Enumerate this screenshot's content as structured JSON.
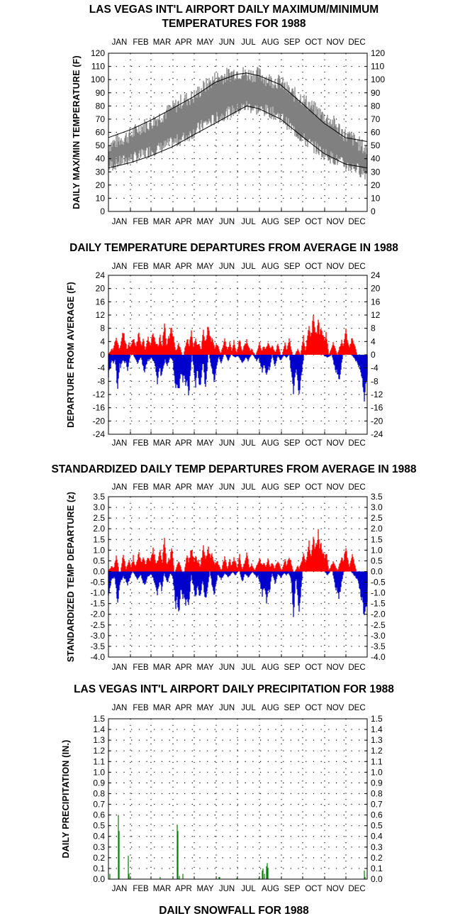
{
  "months": [
    "JAN",
    "FEB",
    "MAR",
    "APR",
    "MAY",
    "JUN",
    "JUL",
    "AUG",
    "SEP",
    "OCT",
    "NOV",
    "DEC"
  ],
  "colors": {
    "warm": "#ff0000",
    "cool": "#0000cc",
    "range": "#808080",
    "precip": "#008000",
    "grid": "#000000"
  },
  "footer_title": "DAILY SNOWFALL FOR 1988",
  "chart_data": [
    {
      "id": "temp",
      "type": "area",
      "title_lines": [
        "LAS VEGAS INT'L AIRPORT DAILY MAXIMUM/MINIMUM",
        "TEMPERATURES FOR 1988"
      ],
      "ylabel": "DAILY MAX/MIN TEMPERATURE (F)",
      "xlabel": "",
      "ylim": [
        0,
        120
      ],
      "yticks": [
        0,
        10,
        20,
        30,
        40,
        50,
        60,
        70,
        80,
        90,
        100,
        110,
        120
      ],
      "grid": true,
      "x_unit": "day of year 1988",
      "series": [
        {
          "kind": "band",
          "name": "",
          "color": "#808080",
          "x": [
            1,
            15,
            32,
            46,
            60,
            74,
            91,
            105,
            121,
            135,
            152,
            166,
            182,
            196,
            213,
            227,
            244,
            258,
            274,
            288,
            305,
            319,
            335,
            349,
            366
          ],
          "high": [
            50,
            54,
            58,
            64,
            67,
            72,
            78,
            84,
            87,
            94,
            101,
            103,
            106,
            104,
            104,
            100,
            98,
            90,
            86,
            79,
            72,
            67,
            58,
            54,
            46
          ],
          "low": [
            34,
            37,
            40,
            42,
            46,
            48,
            52,
            55,
            60,
            66,
            70,
            74,
            77,
            80,
            77,
            76,
            72,
            64,
            56,
            50,
            44,
            40,
            35,
            33,
            28
          ]
        },
        {
          "kind": "line",
          "name": "",
          "color": "#000000",
          "x": [
            1,
            32,
            60,
            91,
            121,
            152,
            182,
            196,
            213,
            244,
            274,
            305,
            335,
            366
          ],
          "y": [
            56,
            62,
            69,
            78,
            87,
            98,
            104,
            105,
            103,
            96,
            82,
            67,
            56,
            53
          ]
        },
        {
          "kind": "line",
          "name": "",
          "color": "#000000",
          "x": [
            1,
            32,
            60,
            91,
            121,
            152,
            182,
            196,
            213,
            244,
            274,
            305,
            335,
            366
          ],
          "y": [
            33,
            37,
            42,
            49,
            58,
            67,
            76,
            80,
            78,
            70,
            57,
            44,
            36,
            33
          ]
        }
      ]
    },
    {
      "id": "dep",
      "type": "bar",
      "title_lines": [
        "DAILY TEMPERATURE DEPARTURES FROM AVERAGE IN 1988"
      ],
      "ylabel": "DEPARTURE FROM AVERAGE (F)",
      "xlabel": "",
      "ylim": [
        -24,
        24
      ],
      "yticks": [
        -24,
        -20,
        -16,
        -12,
        -8,
        -4,
        0,
        4,
        8,
        12,
        16,
        20,
        24
      ],
      "grid": true,
      "x_unit": "day of year 1988",
      "series": [
        {
          "name": "",
          "color": "#ff0000",
          "x": [
            6,
            12,
            22,
            30,
            36,
            44,
            50,
            57,
            64,
            70,
            74,
            80,
            86,
            90,
            100,
            112,
            118,
            124,
            128,
            135,
            142,
            147,
            154,
            165,
            172,
            178,
            186,
            194,
            196,
            203,
            214,
            220,
            226,
            232,
            240,
            250,
            256,
            268,
            276,
            284,
            290,
            294,
            297,
            301,
            304,
            308,
            318,
            330,
            336,
            345
          ],
          "y": [
            2,
            6,
            8,
            4,
            6,
            8,
            6,
            6,
            8,
            4,
            7,
            12,
            6,
            10,
            4,
            6,
            8,
            6,
            4,
            9,
            10,
            6,
            4,
            5,
            4,
            5,
            5,
            4,
            5,
            2,
            4,
            3,
            4,
            3,
            4,
            4,
            5,
            2,
            6,
            10,
            12,
            9,
            13,
            10,
            7,
            7,
            4,
            5,
            8,
            6
          ]
        },
        {
          "name": "",
          "color": "#0000cc",
          "x": [
            1,
            8,
            14,
            18,
            24,
            28,
            42,
            52,
            58,
            66,
            70,
            76,
            84,
            92,
            96,
            100,
            106,
            110,
            114,
            124,
            130,
            138,
            150,
            160,
            170,
            180,
            190,
            198,
            210,
            218,
            224,
            228,
            236,
            244,
            252,
            260,
            262,
            270,
            310,
            322,
            326,
            350,
            354,
            358,
            362,
            365
          ],
          "y": [
            -7,
            -3,
            -12,
            -4,
            -3,
            -5,
            -3,
            -6,
            -2,
            -3,
            -9,
            -8,
            -4,
            -2,
            -12,
            -13,
            -9,
            -12,
            -14,
            -10,
            -11,
            -12,
            -9,
            -3,
            -2,
            -1,
            -3,
            -2,
            -2,
            -6,
            -8,
            -6,
            -4,
            -2,
            -1,
            -3,
            -12,
            -13,
            -1,
            -6,
            -9,
            -2,
            -4,
            -8,
            -15,
            -9
          ]
        }
      ]
    },
    {
      "id": "std",
      "type": "bar",
      "title_lines": [
        "STANDARDIZED DAILY TEMP DEPARTURES FROM AVERAGE IN 1988"
      ],
      "ylabel": "STANDARDIZED TEMP DEPARTURE (z)",
      "xlabel": "",
      "ylim": [
        -4.0,
        3.5
      ],
      "yticks": [
        -4.0,
        -3.5,
        -3.0,
        -2.5,
        -2.0,
        -1.5,
        -1.0,
        -0.5,
        0.0,
        0.5,
        1.0,
        1.5,
        2.0,
        2.5,
        3.0,
        3.5
      ],
      "grid": true,
      "x_unit": "day of year 1988",
      "series": [
        {
          "name": "",
          "color": "#ff0000",
          "x": [
            6,
            12,
            22,
            30,
            36,
            44,
            50,
            57,
            64,
            70,
            74,
            80,
            86,
            90,
            100,
            112,
            118,
            124,
            128,
            135,
            142,
            147,
            154,
            165,
            172,
            178,
            186,
            194,
            196,
            203,
            214,
            220,
            226,
            232,
            240,
            250,
            256,
            268,
            276,
            284,
            290,
            294,
            297,
            301,
            304,
            308,
            318,
            330,
            336,
            345
          ],
          "y": [
            0.3,
            0.9,
            1.0,
            0.6,
            0.8,
            1.0,
            0.8,
            0.8,
            1.2,
            0.6,
            1.1,
            1.9,
            0.8,
            1.4,
            0.6,
            0.9,
            1.2,
            0.9,
            0.6,
            1.3,
            1.3,
            0.9,
            0.6,
            0.8,
            0.6,
            0.7,
            0.9,
            0.6,
            1.0,
            0.4,
            0.7,
            0.5,
            0.7,
            0.5,
            0.6,
            0.6,
            0.8,
            0.3,
            0.9,
            1.5,
            1.8,
            1.5,
            2.2,
            1.6,
            1.1,
            1.1,
            0.5,
            0.8,
            1.3,
            0.9
          ]
        },
        {
          "name": "",
          "color": "#0000cc",
          "x": [
            1,
            8,
            14,
            18,
            24,
            28,
            42,
            52,
            58,
            66,
            70,
            76,
            84,
            92,
            96,
            100,
            106,
            110,
            114,
            124,
            130,
            138,
            150,
            160,
            170,
            180,
            190,
            198,
            210,
            218,
            224,
            228,
            236,
            244,
            252,
            260,
            262,
            270,
            310,
            322,
            326,
            350,
            354,
            358,
            362,
            365
          ],
          "y": [
            -1.2,
            -0.4,
            -1.7,
            -0.6,
            -0.4,
            -0.7,
            -0.4,
            -0.8,
            -0.3,
            -0.5,
            -1.2,
            -1.0,
            -0.6,
            -0.3,
            -1.8,
            -2.2,
            -1.4,
            -1.8,
            -2.0,
            -1.4,
            -1.5,
            -1.6,
            -1.3,
            -0.4,
            -0.3,
            -0.2,
            -0.6,
            -0.3,
            -0.3,
            -1.2,
            -1.5,
            -1.2,
            -0.6,
            -0.3,
            -0.2,
            -0.5,
            -2.3,
            -2.1,
            -0.2,
            -1.0,
            -1.4,
            -0.3,
            -0.6,
            -1.4,
            -2.5,
            -1.8
          ]
        }
      ]
    },
    {
      "id": "precip",
      "type": "bar",
      "title_lines": [
        "LAS VEGAS INT'L AIRPORT DAILY PRECIPITATION FOR 1988"
      ],
      "ylabel": "DAILY PRECIPITATION (IN.)",
      "xlabel": "",
      "ylim": [
        0.0,
        1.5
      ],
      "yticks": [
        0.0,
        0.1,
        0.2,
        0.3,
        0.4,
        0.5,
        0.6,
        0.7,
        0.8,
        0.9,
        1.0,
        1.1,
        1.2,
        1.3,
        1.4,
        1.5
      ],
      "grid": true,
      "x_unit": "day of year 1988",
      "series": [
        {
          "name": "",
          "color": "#008000",
          "x": [
            3,
            15,
            16,
            29,
            30,
            74,
            98,
            99,
            101,
            106,
            157,
            158,
            182,
            213,
            218,
            219,
            221,
            224,
            225,
            226,
            362,
            363
          ],
          "y": [
            0.05,
            0.6,
            0.45,
            0.22,
            0.05,
            0.02,
            0.51,
            0.45,
            0.03,
            0.05,
            0.02,
            0.02,
            0.01,
            0.01,
            0.08,
            0.1,
            0.05,
            0.12,
            0.15,
            0.1,
            0.08,
            0.02
          ]
        }
      ]
    }
  ]
}
